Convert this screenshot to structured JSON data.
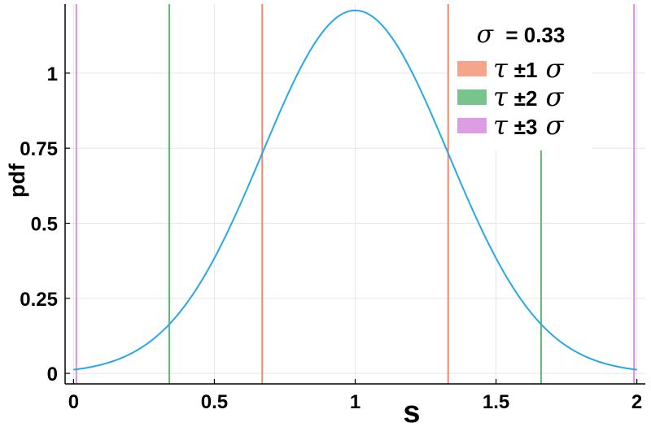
{
  "chart_data": {
    "type": "line",
    "title": "",
    "xlabel": "s",
    "ylabel": "pdf",
    "xlim": [
      -0.03,
      2.03
    ],
    "ylim": [
      -0.035,
      1.23
    ],
    "xticks": [
      0,
      0.5,
      1,
      1.5,
      2
    ],
    "xtick_labels": [
      "0",
      "0.5",
      "1",
      "1.5",
      "2"
    ],
    "yticks": [
      0,
      0.25,
      0.5,
      0.75,
      1
    ],
    "ytick_labels": [
      "0",
      "0.25",
      "0.5",
      "0.75",
      "1"
    ],
    "grid": true,
    "legend_position": "top-right",
    "curve": {
      "distribution": "normal",
      "mean": 1,
      "sigma": 0.33,
      "x_range": [
        0,
        2
      ],
      "color": "#2aa7e8"
    },
    "vertical_lines": [
      {
        "x": 0.67,
        "color": "#f08a6c"
      },
      {
        "x": 1.33,
        "color": "#f08a6c"
      },
      {
        "x": 0.34,
        "color": "#5cb874"
      },
      {
        "x": 1.66,
        "color": "#5cb874"
      },
      {
        "x": 0.01,
        "color": "#d98ee0"
      },
      {
        "x": 1.99,
        "color": "#d98ee0"
      }
    ],
    "legend": {
      "header_symbol": "σ",
      "header_value": "= 0.33",
      "entries": [
        {
          "symbol": "τ",
          "text": "±1",
          "suffix": "σ",
          "color": "#f4a58c"
        },
        {
          "symbol": "τ",
          "text": "±2",
          "suffix": "σ",
          "color": "#79c38c"
        },
        {
          "symbol": "τ",
          "text": "±3",
          "suffix": "σ",
          "color": "#dc9de3"
        }
      ]
    }
  }
}
